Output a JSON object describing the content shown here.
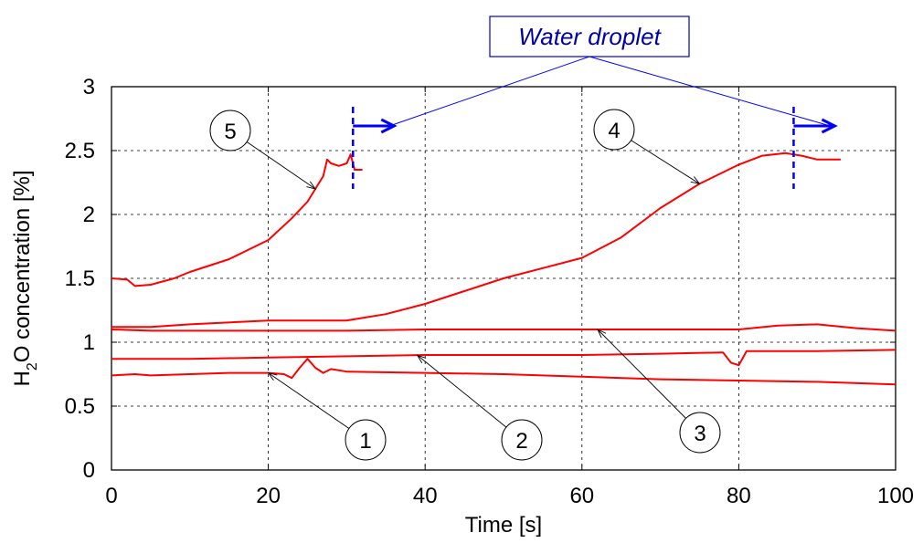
{
  "chart_data": {
    "type": "line",
    "xlabel": "Time  [s]",
    "ylabel_main": "H",
    "ylabel_sub": "2",
    "ylabel_rest": "O concentration  [%]",
    "xlim": [
      0,
      100
    ],
    "ylim": [
      0,
      3
    ],
    "xticks": [
      "0",
      "20",
      "40",
      "60",
      "80",
      "100"
    ],
    "yticks": [
      "0",
      "0.5",
      "1",
      "1.5",
      "2",
      "2.5",
      "3"
    ],
    "grid": true,
    "line_color": "#ff0000",
    "series": [
      {
        "label": "1",
        "x": [
          0,
          3,
          5,
          10,
          15,
          20,
          22,
          23,
          24,
          25,
          26,
          27,
          28,
          30,
          40,
          50,
          60,
          70,
          80,
          90,
          100
        ],
        "y": [
          0.74,
          0.75,
          0.74,
          0.75,
          0.76,
          0.76,
          0.75,
          0.72,
          0.8,
          0.87,
          0.8,
          0.76,
          0.79,
          0.77,
          0.76,
          0.75,
          0.73,
          0.71,
          0.7,
          0.69,
          0.67
        ]
      },
      {
        "label": "2",
        "x": [
          0,
          10,
          20,
          30,
          40,
          50,
          60,
          70,
          78,
          79,
          80,
          81,
          85,
          90,
          100
        ],
        "y": [
          0.87,
          0.87,
          0.88,
          0.89,
          0.9,
          0.9,
          0.9,
          0.91,
          0.92,
          0.84,
          0.82,
          0.93,
          0.93,
          0.93,
          0.94
        ]
      },
      {
        "label": "3",
        "x": [
          0,
          5,
          10,
          20,
          30,
          40,
          50,
          60,
          70,
          80,
          85,
          90,
          95,
          100
        ],
        "y": [
          1.1,
          1.09,
          1.09,
          1.09,
          1.09,
          1.1,
          1.1,
          1.1,
          1.1,
          1.1,
          1.13,
          1.14,
          1.11,
          1.09
        ]
      },
      {
        "label": "4",
        "x": [
          0,
          5,
          10,
          20,
          30,
          35,
          40,
          45,
          50,
          55,
          60,
          65,
          70,
          75,
          80,
          83,
          86,
          88,
          90,
          93
        ],
        "y": [
          1.12,
          1.12,
          1.14,
          1.17,
          1.17,
          1.22,
          1.3,
          1.4,
          1.5,
          1.58,
          1.66,
          1.82,
          2.05,
          2.24,
          2.39,
          2.46,
          2.48,
          2.46,
          2.43,
          2.43
        ]
      },
      {
        "label": "5",
        "x": [
          0,
          2,
          3,
          5,
          8,
          10,
          15,
          20,
          23,
          25,
          26,
          27,
          27.5,
          28,
          29,
          30,
          30.5,
          31,
          32
        ],
        "y": [
          1.5,
          1.49,
          1.44,
          1.45,
          1.5,
          1.55,
          1.65,
          1.8,
          1.97,
          2.1,
          2.2,
          2.3,
          2.43,
          2.4,
          2.38,
          2.4,
          2.47,
          2.35,
          2.35
        ]
      }
    ],
    "annotations": {
      "water_droplet_label": "Water droplet",
      "droplet_times": [
        30.8,
        87.0
      ]
    }
  }
}
